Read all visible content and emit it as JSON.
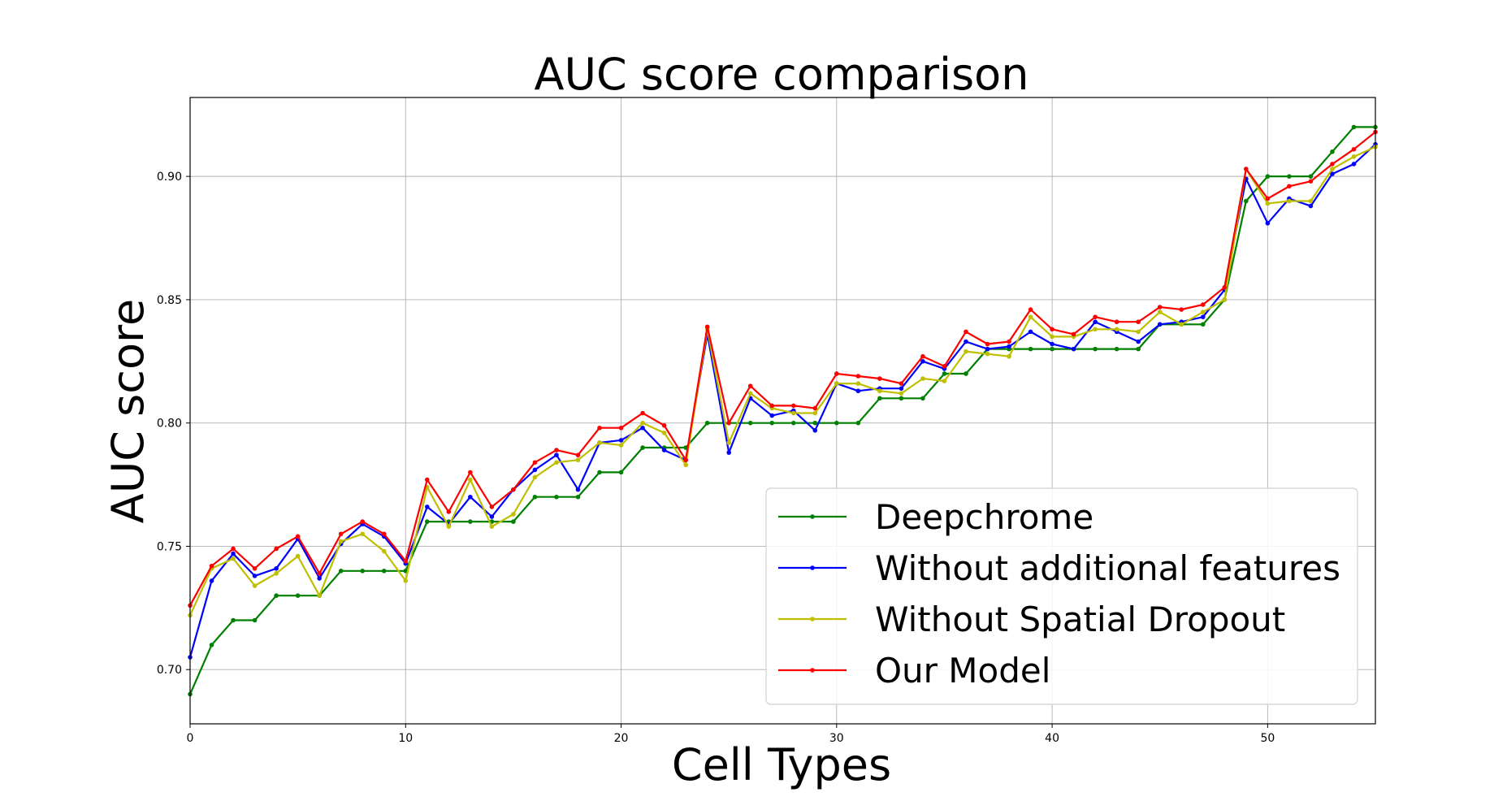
{
  "chart_data": {
    "type": "line",
    "title": "AUC score comparison",
    "xlabel": "Cell Types",
    "ylabel": "AUC score",
    "xlim": [
      0,
      55
    ],
    "ylim": [
      0.678,
      0.932
    ],
    "xticks": [
      0,
      10,
      20,
      30,
      40,
      50
    ],
    "xtick_labels": [
      "0",
      "10",
      "20",
      "30",
      "40",
      "50"
    ],
    "yticks": [
      0.7,
      0.75,
      0.8,
      0.85,
      0.9
    ],
    "ytick_labels": [
      "0.70",
      "0.75",
      "0.80",
      "0.85",
      "0.90"
    ],
    "grid": true,
    "legend_position": "lower-right",
    "x": [
      0,
      1,
      2,
      3,
      4,
      5,
      6,
      7,
      8,
      9,
      10,
      11,
      12,
      13,
      14,
      15,
      16,
      17,
      18,
      19,
      20,
      21,
      22,
      23,
      24,
      25,
      26,
      27,
      28,
      29,
      30,
      31,
      32,
      33,
      34,
      35,
      36,
      37,
      38,
      39,
      40,
      41,
      42,
      43,
      44,
      45,
      46,
      47,
      48,
      49,
      50,
      51,
      52,
      53,
      54,
      55
    ],
    "series": [
      {
        "name": "Deepchrome",
        "color": "#008000",
        "values": [
          0.69,
          0.71,
          0.72,
          0.72,
          0.73,
          0.73,
          0.73,
          0.74,
          0.74,
          0.74,
          0.74,
          0.76,
          0.76,
          0.76,
          0.76,
          0.76,
          0.77,
          0.77,
          0.77,
          0.78,
          0.78,
          0.79,
          0.79,
          0.79,
          0.8,
          0.8,
          0.8,
          0.8,
          0.8,
          0.8,
          0.8,
          0.8,
          0.81,
          0.81,
          0.81,
          0.82,
          0.82,
          0.83,
          0.83,
          0.83,
          0.83,
          0.83,
          0.83,
          0.83,
          0.83,
          0.84,
          0.84,
          0.84,
          0.85,
          0.89,
          0.9,
          0.9,
          0.9,
          0.91,
          0.92,
          0.92
        ]
      },
      {
        "name": "Without additional features",
        "color": "#0000ff",
        "values": [
          0.705,
          0.736,
          0.747,
          0.738,
          0.741,
          0.753,
          0.737,
          0.751,
          0.759,
          0.754,
          0.743,
          0.766,
          0.759,
          0.77,
          0.762,
          0.773,
          0.781,
          0.787,
          0.773,
          0.792,
          0.793,
          0.798,
          0.789,
          0.785,
          0.836,
          0.788,
          0.81,
          0.803,
          0.805,
          0.797,
          0.816,
          0.813,
          0.814,
          0.814,
          0.825,
          0.822,
          0.833,
          0.83,
          0.831,
          0.837,
          0.832,
          0.83,
          0.841,
          0.837,
          0.833,
          0.84,
          0.841,
          0.843,
          0.854,
          0.899,
          0.881,
          0.891,
          0.888,
          0.901,
          0.905,
          0.913
        ]
      },
      {
        "name": "Without Spatial Dropout",
        "color": "#bfbf00",
        "values": [
          0.722,
          0.741,
          0.745,
          0.734,
          0.739,
          0.746,
          0.73,
          0.752,
          0.755,
          0.748,
          0.736,
          0.774,
          0.758,
          0.777,
          0.758,
          0.763,
          0.778,
          0.784,
          0.785,
          0.792,
          0.791,
          0.8,
          0.796,
          0.783,
          0.838,
          0.792,
          0.812,
          0.806,
          0.804,
          0.804,
          0.816,
          0.816,
          0.813,
          0.812,
          0.818,
          0.817,
          0.829,
          0.828,
          0.827,
          0.843,
          0.835,
          0.835,
          0.838,
          0.838,
          0.837,
          0.845,
          0.84,
          0.845,
          0.85,
          0.903,
          0.889,
          0.89,
          0.89,
          0.903,
          0.908,
          0.912
        ]
      },
      {
        "name": "Our Model",
        "color": "#ff0000",
        "values": [
          0.726,
          0.742,
          0.749,
          0.741,
          0.749,
          0.754,
          0.739,
          0.755,
          0.76,
          0.755,
          0.744,
          0.777,
          0.764,
          0.78,
          0.766,
          0.773,
          0.784,
          0.789,
          0.787,
          0.798,
          0.798,
          0.804,
          0.799,
          0.785,
          0.839,
          0.8,
          0.815,
          0.807,
          0.807,
          0.806,
          0.82,
          0.819,
          0.818,
          0.816,
          0.827,
          0.823,
          0.837,
          0.832,
          0.833,
          0.846,
          0.838,
          0.836,
          0.843,
          0.841,
          0.841,
          0.847,
          0.846,
          0.848,
          0.855,
          0.903,
          0.891,
          0.896,
          0.898,
          0.905,
          0.911,
          0.918
        ]
      }
    ]
  }
}
